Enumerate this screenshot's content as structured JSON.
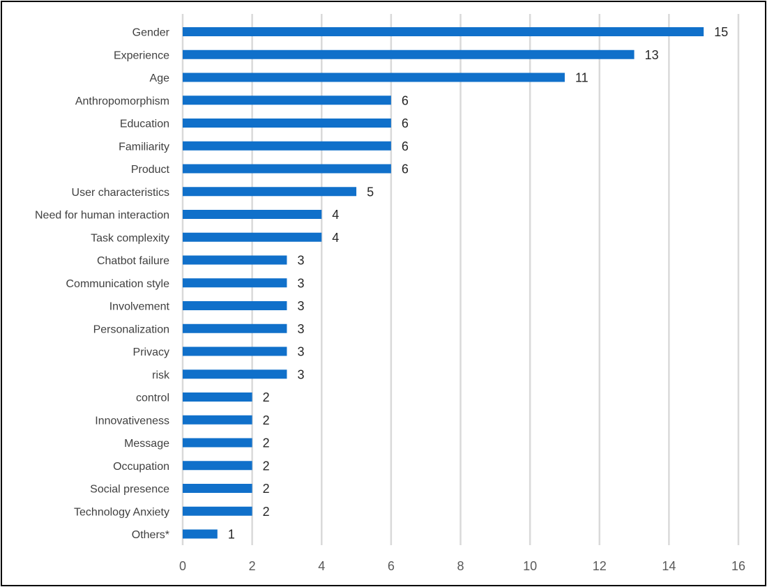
{
  "chart_data": {
    "type": "bar",
    "orientation": "horizontal",
    "categories": [
      "Gender",
      "Experience",
      "Age",
      "Anthropomorphism",
      "Education",
      "Familiarity",
      "Product",
      "User characteristics",
      "Need for human interaction",
      "Task complexity",
      "Chatbot failure",
      "Communication style",
      "Involvement",
      "Personalization",
      "Privacy",
      "risk",
      "control",
      "Innovativeness",
      "Message",
      "Occupation",
      "Social presence",
      "Technology Anxiety",
      "Others*"
    ],
    "values": [
      15,
      13,
      11,
      6,
      6,
      6,
      6,
      5,
      4,
      4,
      3,
      3,
      3,
      3,
      3,
      3,
      2,
      2,
      2,
      2,
      2,
      2,
      1
    ],
    "data_labels": true,
    "xlim": [
      0,
      16
    ],
    "xticks": [
      0,
      2,
      4,
      6,
      8,
      10,
      12,
      14,
      16
    ],
    "grid": "vertical",
    "legend": "none",
    "bar_color": "#1070CA",
    "grid_color": "#D9D9D9"
  }
}
